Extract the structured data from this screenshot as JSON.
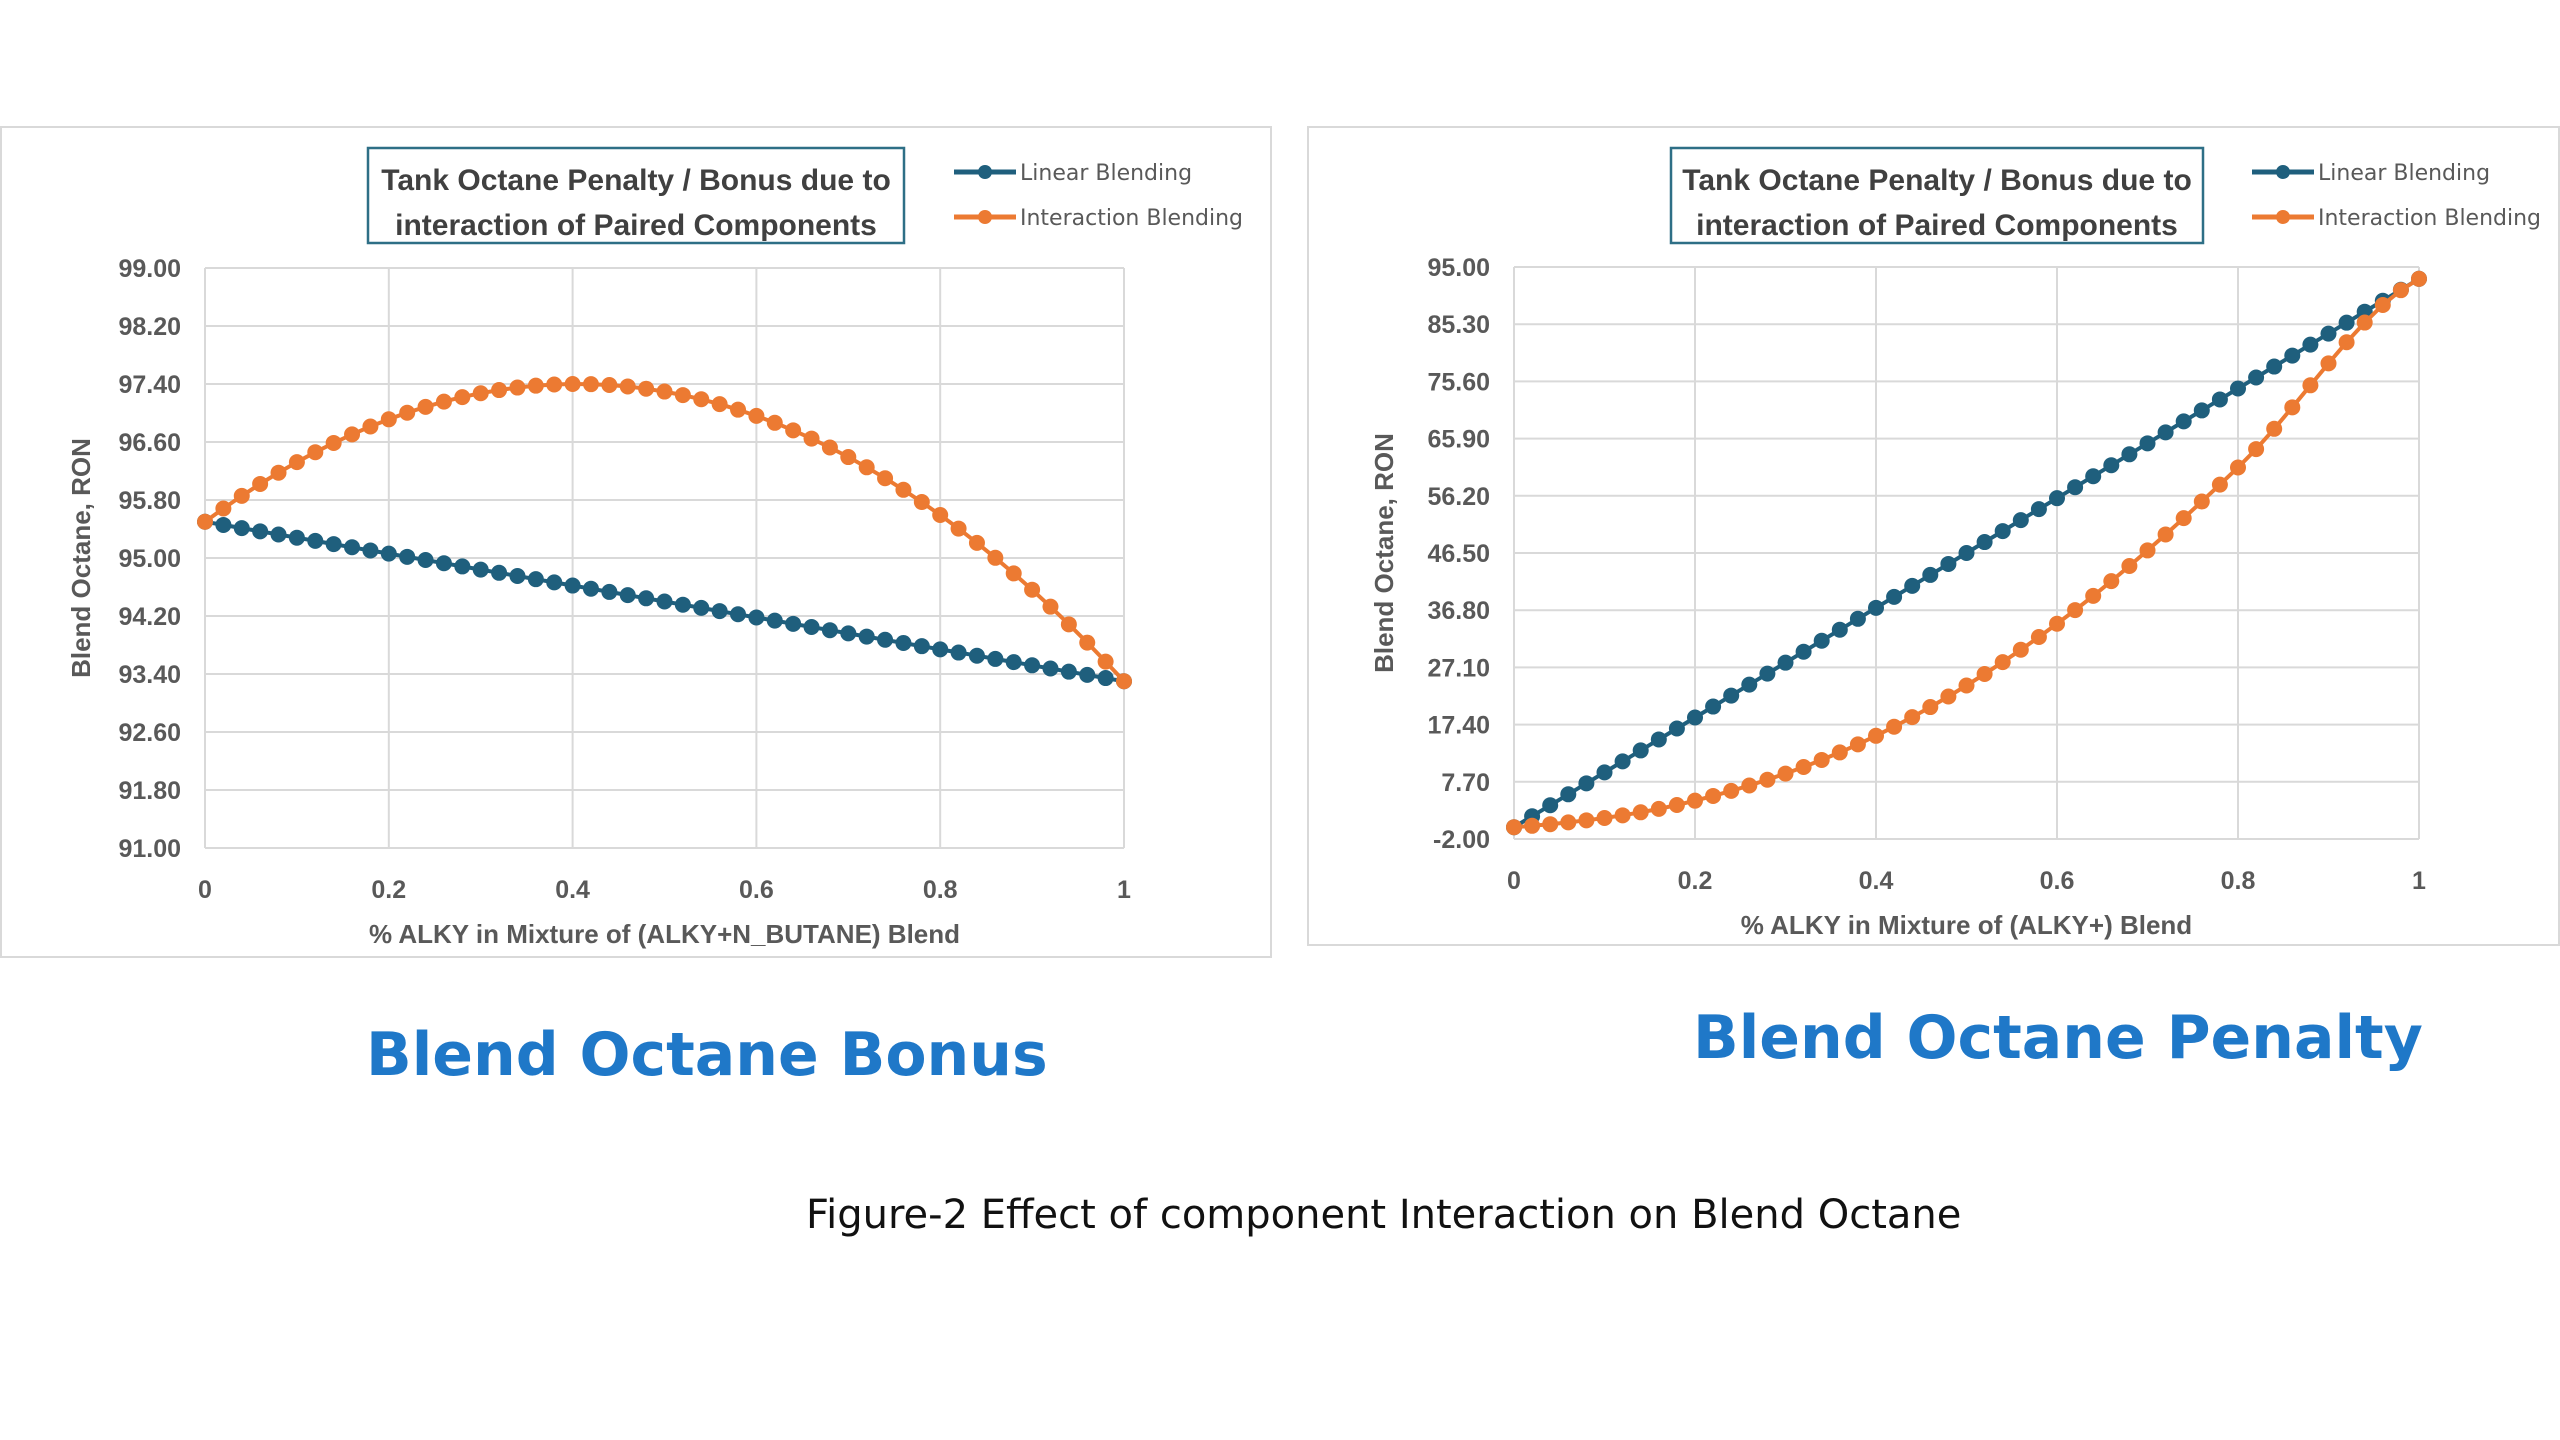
{
  "colors": {
    "linear": "#1f5f7d",
    "interaction": "#ec7a32",
    "grid": "#d9d9d9",
    "text": "#595959",
    "caption": "#1f78c8"
  },
  "captions": {
    "left": "Blend Octane Bonus",
    "right": "Blend Octane Penalty",
    "figure": "Figure-2 Effect of  component Interaction on Blend Octane"
  },
  "chart_data": [
    {
      "type": "line",
      "title_lines": [
        "Tank Octane Penalty  / Bonus due to",
        "interaction  of Paired Components"
      ],
      "xlabel": "% ALKY in Mixture of (ALKY+N_BUTANE) Blend",
      "ylabel": "Blend Octane, RON",
      "xlim": [
        0,
        1
      ],
      "ylim": [
        91.0,
        99.0
      ],
      "x_ticks": [
        "0",
        "0.2",
        "0.4",
        "0.6",
        "0.8",
        "1"
      ],
      "y_ticks": [
        "91.00",
        "91.80",
        "92.60",
        "93.40",
        "94.20",
        "95.00",
        "95.80",
        "96.60",
        "97.40",
        "98.20",
        "99.00"
      ],
      "legend_position": "top-right",
      "grid": true,
      "series": [
        {
          "name": "Linear Blending",
          "color": "#1f5f7d",
          "marker": "circle",
          "x_start": 0,
          "x_step": 0.02,
          "count": 51,
          "endpoints": [
            95.5,
            93.3
          ],
          "shape": "linear"
        },
        {
          "name": "Interaction Blending",
          "color": "#ec7a32",
          "marker": "circle",
          "x_start": 0,
          "x_step": 0.02,
          "count": 51,
          "endpoints": [
            95.5,
            93.3
          ],
          "shape": "concave",
          "peak": {
            "x": 0.4,
            "y": 97.4
          }
        }
      ]
    },
    {
      "type": "line",
      "title_lines": [
        "Tank Octane Penalty  / Bonus due to",
        "interaction  of Paired Components"
      ],
      "xlabel": "% ALKY in Mixture of (ALKY+) Blend",
      "ylabel": "Blend Octane, RON",
      "xlim": [
        0,
        1
      ],
      "ylim": [
        -2.0,
        95.0
      ],
      "x_ticks": [
        "0",
        "0.2",
        "0.4",
        "0.6",
        "0.8",
        "1"
      ],
      "y_ticks": [
        "-2.00",
        "7.70",
        "17.40",
        "27.10",
        "36.80",
        "46.50",
        "56.20",
        "65.90",
        "75.60",
        "85.30",
        "95.00"
      ],
      "legend_position": "top-right",
      "grid": true,
      "series": [
        {
          "name": "Linear Blending",
          "color": "#1f5f7d",
          "marker": "circle",
          "x_start": 0,
          "x_step": 0.02,
          "count": 51,
          "endpoints": [
            0,
            93
          ],
          "shape": "linear"
        },
        {
          "name": "Interaction Blending",
          "color": "#ec7a32",
          "marker": "circle",
          "x_start": 0,
          "x_step": 0.02,
          "count": 51,
          "endpoints": [
            0,
            93
          ],
          "shape": "convex",
          "values_at": {
            "0.2": 4.5,
            "0.4": 15.5,
            "0.6": 34.5,
            "0.8": 61.0
          }
        }
      ]
    }
  ]
}
